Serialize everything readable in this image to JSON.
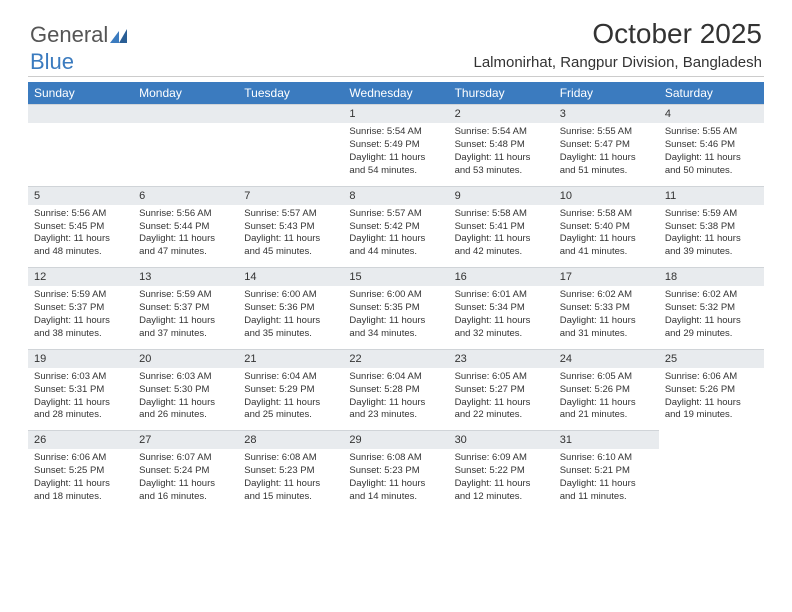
{
  "logo": {
    "text1": "General",
    "text2": "Blue"
  },
  "title": "October 2025",
  "subtitle": "Lalmonirhat, Rangpur Division, Bangladesh",
  "colors": {
    "header_bg": "#3b7bbf",
    "header_fg": "#ffffff",
    "daynum_bg": "#e8ebee",
    "text": "#333333",
    "background": "#ffffff",
    "rule": "#cccccc"
  },
  "day_headers": [
    "Sunday",
    "Monday",
    "Tuesday",
    "Wednesday",
    "Thursday",
    "Friday",
    "Saturday"
  ],
  "lead_empty": 3,
  "days": [
    {
      "n": "1",
      "sunrise": "5:54 AM",
      "sunset": "5:49 PM",
      "daylight": "11 hours and 54 minutes."
    },
    {
      "n": "2",
      "sunrise": "5:54 AM",
      "sunset": "5:48 PM",
      "daylight": "11 hours and 53 minutes."
    },
    {
      "n": "3",
      "sunrise": "5:55 AM",
      "sunset": "5:47 PM",
      "daylight": "11 hours and 51 minutes."
    },
    {
      "n": "4",
      "sunrise": "5:55 AM",
      "sunset": "5:46 PM",
      "daylight": "11 hours and 50 minutes."
    },
    {
      "n": "5",
      "sunrise": "5:56 AM",
      "sunset": "5:45 PM",
      "daylight": "11 hours and 48 minutes."
    },
    {
      "n": "6",
      "sunrise": "5:56 AM",
      "sunset": "5:44 PM",
      "daylight": "11 hours and 47 minutes."
    },
    {
      "n": "7",
      "sunrise": "5:57 AM",
      "sunset": "5:43 PM",
      "daylight": "11 hours and 45 minutes."
    },
    {
      "n": "8",
      "sunrise": "5:57 AM",
      "sunset": "5:42 PM",
      "daylight": "11 hours and 44 minutes."
    },
    {
      "n": "9",
      "sunrise": "5:58 AM",
      "sunset": "5:41 PM",
      "daylight": "11 hours and 42 minutes."
    },
    {
      "n": "10",
      "sunrise": "5:58 AM",
      "sunset": "5:40 PM",
      "daylight": "11 hours and 41 minutes."
    },
    {
      "n": "11",
      "sunrise": "5:59 AM",
      "sunset": "5:38 PM",
      "daylight": "11 hours and 39 minutes."
    },
    {
      "n": "12",
      "sunrise": "5:59 AM",
      "sunset": "5:37 PM",
      "daylight": "11 hours and 38 minutes."
    },
    {
      "n": "13",
      "sunrise": "5:59 AM",
      "sunset": "5:37 PM",
      "daylight": "11 hours and 37 minutes."
    },
    {
      "n": "14",
      "sunrise": "6:00 AM",
      "sunset": "5:36 PM",
      "daylight": "11 hours and 35 minutes."
    },
    {
      "n": "15",
      "sunrise": "6:00 AM",
      "sunset": "5:35 PM",
      "daylight": "11 hours and 34 minutes."
    },
    {
      "n": "16",
      "sunrise": "6:01 AM",
      "sunset": "5:34 PM",
      "daylight": "11 hours and 32 minutes."
    },
    {
      "n": "17",
      "sunrise": "6:02 AM",
      "sunset": "5:33 PM",
      "daylight": "11 hours and 31 minutes."
    },
    {
      "n": "18",
      "sunrise": "6:02 AM",
      "sunset": "5:32 PM",
      "daylight": "11 hours and 29 minutes."
    },
    {
      "n": "19",
      "sunrise": "6:03 AM",
      "sunset": "5:31 PM",
      "daylight": "11 hours and 28 minutes."
    },
    {
      "n": "20",
      "sunrise": "6:03 AM",
      "sunset": "5:30 PM",
      "daylight": "11 hours and 26 minutes."
    },
    {
      "n": "21",
      "sunrise": "6:04 AM",
      "sunset": "5:29 PM",
      "daylight": "11 hours and 25 minutes."
    },
    {
      "n": "22",
      "sunrise": "6:04 AM",
      "sunset": "5:28 PM",
      "daylight": "11 hours and 23 minutes."
    },
    {
      "n": "23",
      "sunrise": "6:05 AM",
      "sunset": "5:27 PM",
      "daylight": "11 hours and 22 minutes."
    },
    {
      "n": "24",
      "sunrise": "6:05 AM",
      "sunset": "5:26 PM",
      "daylight": "11 hours and 21 minutes."
    },
    {
      "n": "25",
      "sunrise": "6:06 AM",
      "sunset": "5:26 PM",
      "daylight": "11 hours and 19 minutes."
    },
    {
      "n": "26",
      "sunrise": "6:06 AM",
      "sunset": "5:25 PM",
      "daylight": "11 hours and 18 minutes."
    },
    {
      "n": "27",
      "sunrise": "6:07 AM",
      "sunset": "5:24 PM",
      "daylight": "11 hours and 16 minutes."
    },
    {
      "n": "28",
      "sunrise": "6:08 AM",
      "sunset": "5:23 PM",
      "daylight": "11 hours and 15 minutes."
    },
    {
      "n": "29",
      "sunrise": "6:08 AM",
      "sunset": "5:23 PM",
      "daylight": "11 hours and 14 minutes."
    },
    {
      "n": "30",
      "sunrise": "6:09 AM",
      "sunset": "5:22 PM",
      "daylight": "11 hours and 12 minutes."
    },
    {
      "n": "31",
      "sunrise": "6:10 AM",
      "sunset": "5:21 PM",
      "daylight": "11 hours and 11 minutes."
    }
  ],
  "labels": {
    "sunrise": "Sunrise:",
    "sunset": "Sunset:",
    "daylight": "Daylight:"
  }
}
